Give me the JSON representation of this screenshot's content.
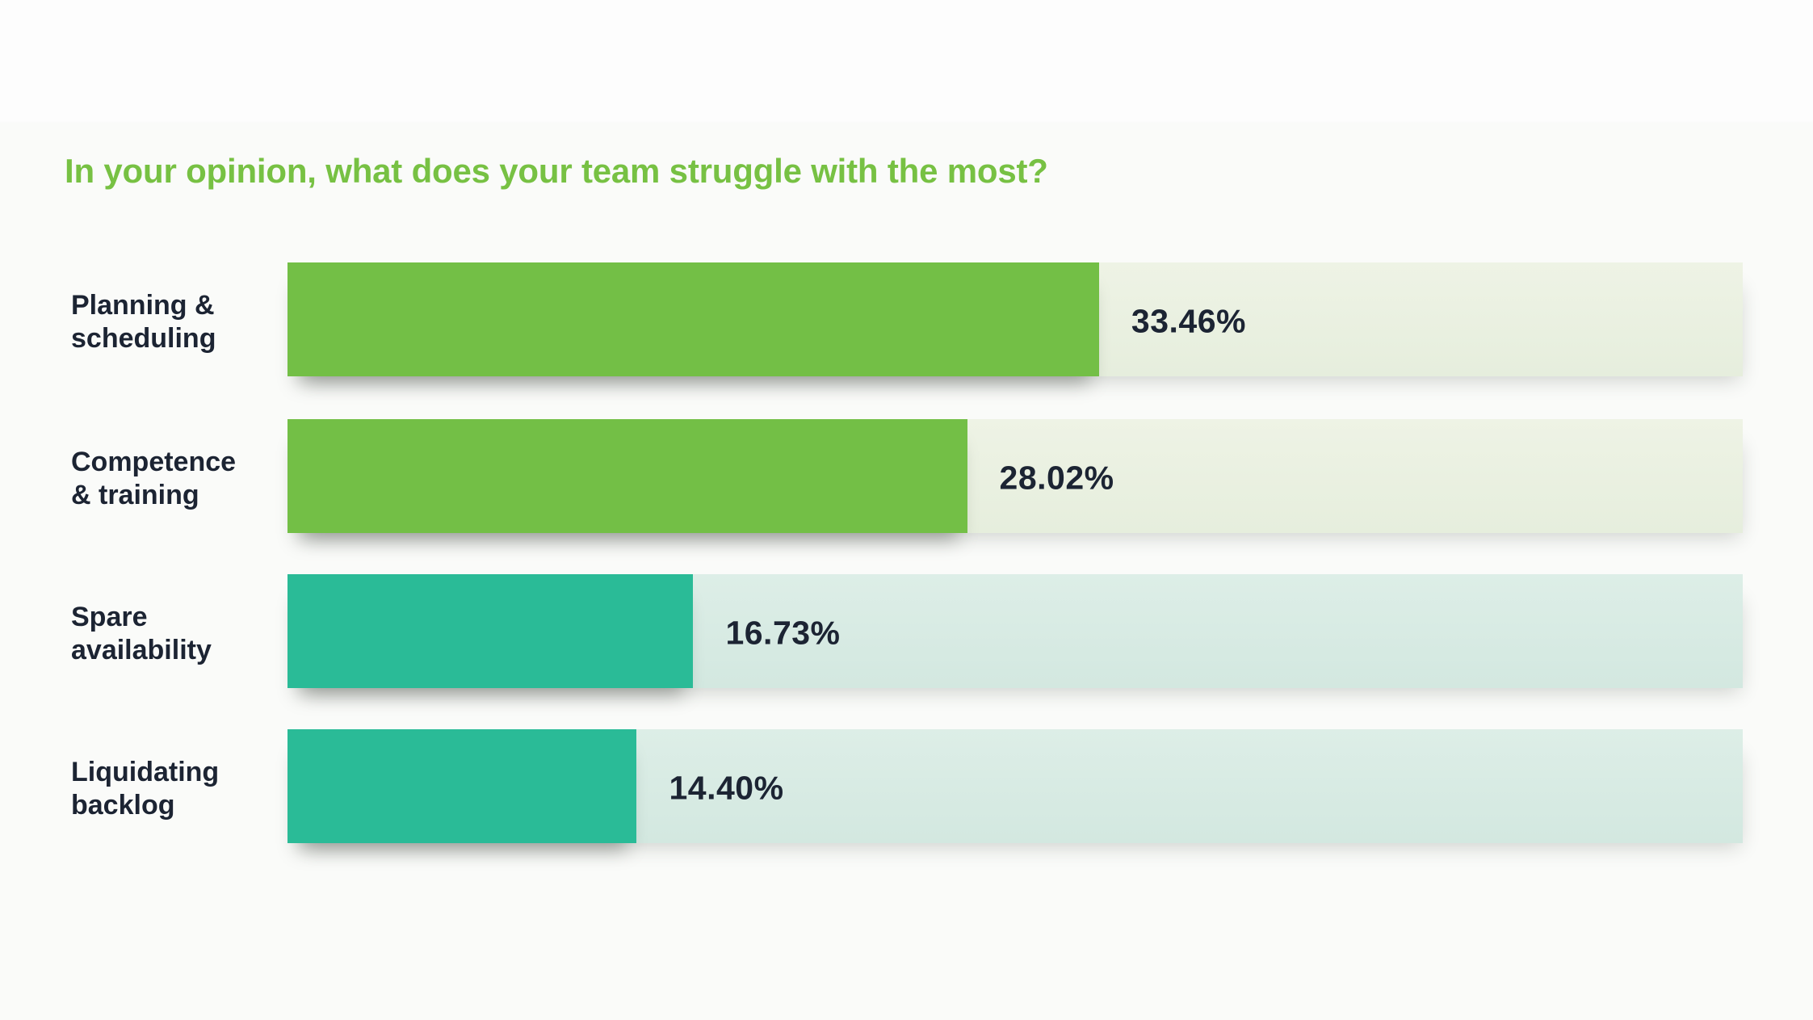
{
  "page": {
    "background": "#fafbf9",
    "top_band_color": "#fdfdfd"
  },
  "chart_data": {
    "type": "bar",
    "orientation": "horizontal",
    "title": "In your opinion, what does your team struggle with the most?",
    "categories": [
      "Planning & scheduling",
      "Competence & training",
      "Spare availability",
      "Liquidating backlog"
    ],
    "values": [
      33.46,
      28.02,
      16.73,
      14.4
    ],
    "value_labels": [
      "33.46%",
      "28.02%",
      "16.73%",
      "14.40%"
    ],
    "axis_max": 60,
    "grid": false,
    "legend": "none",
    "rows": [
      {
        "line1": "Planning &",
        "line2": "scheduling",
        "value": 33.46,
        "label": "33.46%",
        "color_group": "green"
      },
      {
        "line1": "Competence",
        "line2": "& training",
        "value": 28.02,
        "label": "28.02%",
        "color_group": "green"
      },
      {
        "line1": "Spare",
        "line2": "availability",
        "value": 16.73,
        "label": "16.73%",
        "color_group": "teal"
      },
      {
        "line1": "Liquidating",
        "line2": "backlog",
        "value": 14.4,
        "label": "14.40%",
        "color_group": "teal"
      }
    ],
    "colors": {
      "title_green": "#77c143",
      "label_navy": "#1c2433",
      "green_fill": "#73bf46",
      "green_track": "#e8efdf",
      "teal_fill": "#2abb97",
      "teal_track": "#d7eae3"
    }
  }
}
